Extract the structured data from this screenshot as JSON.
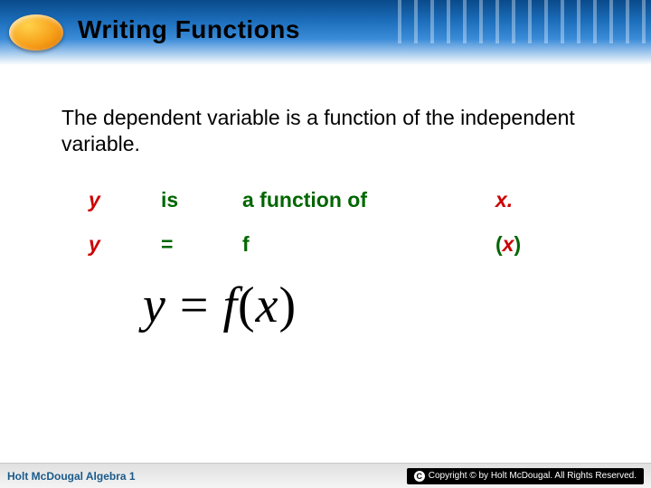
{
  "header": {
    "title": "Writing Functions"
  },
  "intro": "The dependent variable is a function of the independent variable.",
  "table": {
    "row1": {
      "c1": "y",
      "c2": "is",
      "c3": "a function of",
      "c4": "x."
    },
    "row2": {
      "c1": "y",
      "c2": "=",
      "c3": "f",
      "lp": "(",
      "c4": "x",
      "rp": ")"
    }
  },
  "equation": {
    "lhs": "y",
    "eq": " = ",
    "f": "f",
    "lp": "(",
    "x": "x",
    "rp": ")"
  },
  "footer": {
    "left": "Holt McDougal Algebra 1",
    "copyright": "Copyright © by Holt McDougal. All Rights Reserved."
  },
  "colors": {
    "var_color": "#cc0000",
    "op_color": "#006600",
    "header_gradient_top": "#0a4a8a",
    "header_gradient_bottom": "#ffffff",
    "logo_gradient": [
      "#ffd24a",
      "#f7a01a",
      "#d96e00"
    ],
    "footer_left_color": "#1a5a8a",
    "footer_bg": "#e8e8e8"
  },
  "typography": {
    "title_fontsize": 28,
    "intro_fontsize": 23,
    "table_fontsize": 23,
    "equation_fontsize": 56,
    "footer_fontsize": 12
  }
}
